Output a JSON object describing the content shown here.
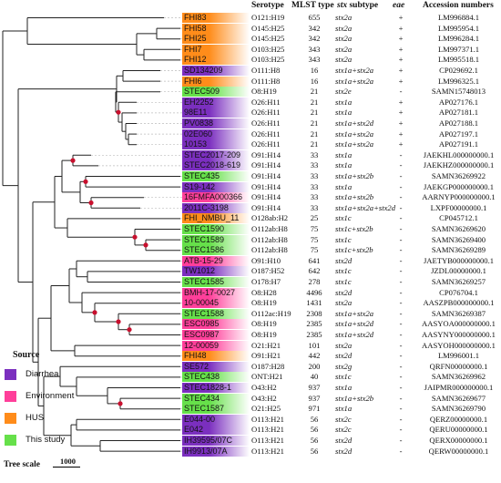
{
  "headers": {
    "serotype": "Serotype",
    "mlst": "MLST type",
    "stx_italic": "stx",
    "stx_rest": " subtype",
    "eae": "eae",
    "accession": "Accession numbers"
  },
  "legend": {
    "title": "Source",
    "items": [
      {
        "key": "diarrhea",
        "label": "Diarrhea",
        "color": "#7b2fbf"
      },
      {
        "key": "environment",
        "label": "Environment",
        "color": "#ff3f9a"
      },
      {
        "key": "hus",
        "label": "HUS",
        "color": "#ff8c1a"
      },
      {
        "key": "this_study",
        "label": "This study",
        "color": "#66e04a"
      }
    ]
  },
  "scale": {
    "label": "Tree scale",
    "value": "1000"
  },
  "strains": [
    {
      "name": "FHI83",
      "source": "hus",
      "serotype": "O121:H19",
      "mlst": "655",
      "stx": "stx2a",
      "eae": "+",
      "accession": "LM996884.1"
    },
    {
      "name": "FHI58",
      "source": "hus",
      "serotype": "O145:H25",
      "mlst": "342",
      "stx": "stx2a",
      "eae": "+",
      "accession": "LM995954.1"
    },
    {
      "name": "FHI25",
      "source": "hus",
      "serotype": "O145:H25",
      "mlst": "342",
      "stx": "stx2a",
      "eae": "+",
      "accession": "LM996284.1"
    },
    {
      "name": "FHI7",
      "source": "hus",
      "serotype": "O103:H25",
      "mlst": "343",
      "stx": "stx2a",
      "eae": "+",
      "accession": "LM997371.1"
    },
    {
      "name": "FHI12",
      "source": "hus",
      "serotype": "O103:H25",
      "mlst": "343",
      "stx": "stx2a",
      "eae": "+",
      "accession": "LM995518.1"
    },
    {
      "name": "SD134209",
      "source": "diarrhea",
      "serotype": "O111:H8",
      "mlst": "16",
      "stx": "stx1a+stx2a",
      "eae": "+",
      "accession": "CP029692.1"
    },
    {
      "name": "FHI6",
      "source": "hus",
      "serotype": "O111:H8",
      "mlst": "16",
      "stx": "stx1a+stx2a",
      "eae": "+",
      "accession": "LM996325.1"
    },
    {
      "name": "STEC509",
      "source": "this_study",
      "serotype": "O8:H19",
      "mlst": "21",
      "stx": "stx2e",
      "eae": "-",
      "accession": "SAMN15748013"
    },
    {
      "name": "EH2252",
      "source": "diarrhea",
      "serotype": "O26:H11",
      "mlst": "21",
      "stx": "stx1a",
      "eae": "+",
      "accession": "AP027176.1"
    },
    {
      "name": "98E11",
      "source": "diarrhea",
      "serotype": "O26:H11",
      "mlst": "21",
      "stx": "stx1a",
      "eae": "+",
      "accession": "AP027181.1"
    },
    {
      "name": "PV0838",
      "source": "diarrhea",
      "serotype": "O26:H11",
      "mlst": "21",
      "stx": "stx1a+stx2d",
      "eae": "+",
      "accession": "AP027188.1"
    },
    {
      "name": "02E060",
      "source": "diarrhea",
      "serotype": "O26:H11",
      "mlst": "21",
      "stx": "stx1a+stx2a",
      "eae": "+",
      "accession": "AP027197.1"
    },
    {
      "name": "10153",
      "source": "diarrhea",
      "serotype": "O26:H11",
      "mlst": "21",
      "stx": "stx1a+stx2a",
      "eae": "+",
      "accession": "AP027191.1"
    },
    {
      "name": "STEC2017-209",
      "source": "diarrhea",
      "serotype": "O91:H14",
      "mlst": "33",
      "stx": "stx1a",
      "eae": "-",
      "accession": "JAEKHL000000000.1"
    },
    {
      "name": "STEC2018-619",
      "source": "diarrhea",
      "serotype": "O91:H14",
      "mlst": "33",
      "stx": "stx1a",
      "eae": "-",
      "accession": "JAEKHZ000000000.1"
    },
    {
      "name": "STEC435",
      "source": "this_study",
      "serotype": "O91:H14",
      "mlst": "33",
      "stx": "stx1a+stx2b",
      "eae": "-",
      "accession": "SAMN36269922"
    },
    {
      "name": "S19-142",
      "source": "diarrhea",
      "serotype": "O91:H14",
      "mlst": "33",
      "stx": "stx1a",
      "eae": "-",
      "accession": "JAEKGP000000000.1"
    },
    {
      "name": "16FMFA000366",
      "source": "environment",
      "serotype": "O91:H14",
      "mlst": "33",
      "stx": "stx1a+stx2b",
      "eae": "-",
      "accession": "AARNYP000000000.1"
    },
    {
      "name": "2011C-3198",
      "source": "diarrhea",
      "serotype": "O91:H14",
      "mlst": "33",
      "stx": "stx1a+stx2a+stx2d",
      "eae": "-",
      "accession": "LXPF00000000.1"
    },
    {
      "name": "FHI_NMBU_11",
      "source": "hus",
      "serotype": "O128ab:H2",
      "mlst": "25",
      "stx": "stx1c",
      "eae": "-",
      "accession": "CP045712.1"
    },
    {
      "name": "STEC1590",
      "source": "this_study",
      "serotype": "O112ab:H8",
      "mlst": "75",
      "stx": "stx1c+stx2b",
      "eae": "-",
      "accession": "SAMN36269620"
    },
    {
      "name": "STEC1589",
      "source": "this_study",
      "serotype": "O112ab:H8",
      "mlst": "75",
      "stx": "stx1c",
      "eae": "-",
      "accession": "SAMN36269400"
    },
    {
      "name": "STEC1586",
      "source": "this_study",
      "serotype": "O112ab:H8",
      "mlst": "75",
      "stx": "stx1c+stx2b",
      "eae": "-",
      "accession": "SAMN36269289"
    },
    {
      "name": "ATB-15-29",
      "source": "environment",
      "serotype": "O91:H10",
      "mlst": "641",
      "stx": "stx2d",
      "eae": "-",
      "accession": "JAETYB000000000.1"
    },
    {
      "name": "TW1012",
      "source": "diarrhea",
      "serotype": "O187:H52",
      "mlst": "642",
      "stx": "stx1c",
      "eae": "-",
      "accession": "JZDL00000000.1"
    },
    {
      "name": "STEC1585",
      "source": "this_study",
      "serotype": "O178:H7",
      "mlst": "278",
      "stx": "stx1c",
      "eae": "-",
      "accession": "SAMN36269257"
    },
    {
      "name": "BMH-17-0027",
      "source": "environment",
      "serotype": "O8:H28",
      "mlst": "4496",
      "stx": "stx2d",
      "eae": "-",
      "accession": "CP076704.1"
    },
    {
      "name": "10-00045",
      "source": "environment",
      "serotype": "O8:H19",
      "mlst": "1431",
      "stx": "stx2a",
      "eae": "-",
      "accession": "AASZPB000000000.1"
    },
    {
      "name": "STEC1588",
      "source": "this_study",
      "serotype": "O112ac:H19",
      "mlst": "2308",
      "stx": "stx1a+stx2a",
      "eae": "-",
      "accession": "SAMN36269387"
    },
    {
      "name": "ESC0985",
      "source": "environment",
      "serotype": "O8:H19",
      "mlst": "2385",
      "stx": "stx1a+stx2d",
      "eae": "-",
      "accession": "AASYOA000000000.1"
    },
    {
      "name": "ESC0987",
      "source": "environment",
      "serotype": "O8:H19",
      "mlst": "2385",
      "stx": "stx1a+stx2d",
      "eae": "-",
      "accession": "AASYNY000000000.1"
    },
    {
      "name": "12-00059",
      "source": "environment",
      "serotype": "O21:H21",
      "mlst": "101",
      "stx": "stx2a",
      "eae": "-",
      "accession": "AASYOH000000000.1"
    },
    {
      "name": "FHI48",
      "source": "hus",
      "serotype": "O91:H21",
      "mlst": "442",
      "stx": "stx2d",
      "eae": "-",
      "accession": "LM996001.1"
    },
    {
      "name": "SE572",
      "source": "diarrhea",
      "serotype": "O187:H28",
      "mlst": "200",
      "stx": "stx2g",
      "eae": "-",
      "accession": "QRFN00000000.1"
    },
    {
      "name": "STEC438",
      "source": "this_study",
      "serotype": "ONT:H21",
      "mlst": "40",
      "stx": "stx1c",
      "eae": "-",
      "accession": "SAMN36269962"
    },
    {
      "name": "STEC1828-1",
      "source": "diarrhea",
      "serotype": "O43:H2",
      "mlst": "937",
      "stx": "stx1a",
      "eae": "-",
      "accession": "JAIPMR000000000.1"
    },
    {
      "name": "STEC434",
      "source": "this_study",
      "serotype": "O43:H2",
      "mlst": "937",
      "stx": "stx1a+stx2b",
      "eae": "-",
      "accession": "SAMN36269677"
    },
    {
      "name": "STEC1587",
      "source": "this_study",
      "serotype": "O21:H25",
      "mlst": "971",
      "stx": "stx1a",
      "eae": "-",
      "accession": "SAMN36269790"
    },
    {
      "name": "E044-00",
      "source": "diarrhea",
      "serotype": "O113:H21",
      "mlst": "56",
      "stx": "stx2c",
      "eae": "-",
      "accession": "QERZ00000000.1"
    },
    {
      "name": "E042",
      "source": "diarrhea",
      "serotype": "O113:H21",
      "mlst": "56",
      "stx": "stx2c",
      "eae": "-",
      "accession": "QERU00000000.1"
    },
    {
      "name": "IH39595/07C",
      "source": "diarrhea",
      "serotype": "O113:H21",
      "mlst": "56",
      "stx": "stx2d",
      "eae": "-",
      "accession": "QERX00000000.1"
    },
    {
      "name": "IH9913/07A",
      "source": "diarrhea",
      "serotype": "O113:H21",
      "mlst": "56",
      "stx": "stx2d",
      "eae": "-",
      "accession": "QERW00000000.1"
    }
  ]
}
